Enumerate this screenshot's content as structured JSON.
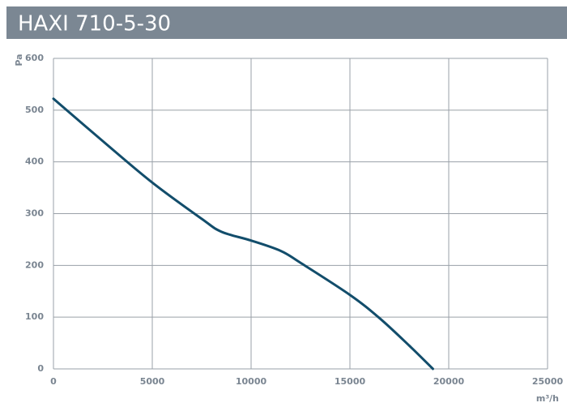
{
  "chart_data": {
    "type": "line",
    "title": "HAXI 710-5-30",
    "xlabel": "m³/h",
    "ylabel": "Pa",
    "x": [
      0,
      2500,
      5000,
      7500,
      8500,
      10000,
      11500,
      12500,
      15000,
      16500,
      18000,
      19200
    ],
    "series": [
      {
        "name": "HAXI 710-5-30",
        "color": "#124d6b",
        "values": [
          522,
          440,
          360,
          290,
          265,
          248,
          228,
          205,
          143,
          98,
          45,
          0
        ]
      }
    ],
    "xlim": [
      0,
      25000
    ],
    "xticks": [
      0,
      5000,
      10000,
      15000,
      20000,
      25000
    ],
    "ylim": [
      0,
      600
    ],
    "yticks": [
      0,
      100,
      200,
      300,
      400,
      500,
      600
    ],
    "grid": true
  }
}
